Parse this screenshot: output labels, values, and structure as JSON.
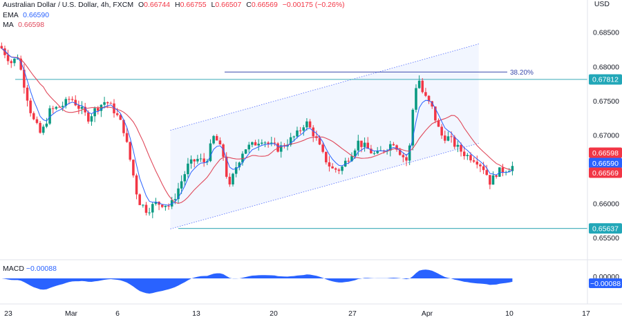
{
  "header": {
    "symbol_title": "Australian Dollar / U.S. Dollar, 4h, FXCM",
    "open_label": "O",
    "open": "0.66744",
    "high_label": "H",
    "high": "0.66755",
    "low_label": "L",
    "low": "0.66507",
    "close_label": "C",
    "close": "0.66569",
    "change": "−0.00175 (−0.26%)",
    "currency": "USD"
  },
  "indicators": {
    "ema_label": "EMA",
    "ema_value": "0.66590",
    "ma_label": "MA",
    "ma_value": "0.66598",
    "macd_label": "MACD",
    "macd_value": "−0.00088"
  },
  "colors": {
    "up": "#089981",
    "down": "#f23645",
    "ema": "#2962ff",
    "ma": "#e0485a",
    "hline": "#4fb3bf",
    "channel": "#3d5afe",
    "macd": "#2962ff",
    "fib": "#3949ab"
  },
  "chart_data": {
    "type": "candlestick",
    "price_axis": {
      "ticks": [
        "0.68500",
        "0.68000",
        "0.67500",
        "0.67000",
        "0.66500",
        "0.66000",
        "0.65500"
      ],
      "ylim": [
        0.6522,
        0.6885
      ]
    },
    "time_axis": {
      "labels": [
        "23",
        "Mar",
        "6",
        "13",
        "20",
        "27",
        "Apr",
        "10",
        "17"
      ]
    },
    "horizontal_lines": [
      {
        "price": 0.67812,
        "label": "0.67812"
      },
      {
        "price": 0.65637,
        "label": "0.65637"
      }
    ],
    "fib_level": {
      "price": 0.6792,
      "label": "38.20%"
    },
    "price_tags": [
      {
        "name": "ma",
        "price": 0.66598,
        "label": "0.66598"
      },
      {
        "name": "ema",
        "price": 0.6659,
        "label": "0.66590"
      },
      {
        "name": "close",
        "price": 0.66569,
        "label": "0.66569"
      }
    ],
    "channel": {
      "upper": [
        {
          "t": 0.29,
          "p": 0.6707
        },
        {
          "t": 0.815,
          "p": 0.6833
        }
      ],
      "lower": [
        {
          "t": 0.29,
          "p": 0.6563
        },
        {
          "t": 0.815,
          "p": 0.6688
        }
      ]
    },
    "waypoints": [
      [
        0.0,
        0.683
      ],
      [
        0.02,
        0.6805
      ],
      [
        0.03,
        0.6815
      ],
      [
        0.045,
        0.676
      ],
      [
        0.055,
        0.6725
      ],
      [
        0.07,
        0.67
      ],
      [
        0.085,
        0.6735
      ],
      [
        0.11,
        0.6745
      ],
      [
        0.12,
        0.6755
      ],
      [
        0.135,
        0.674
      ],
      [
        0.15,
        0.6725
      ],
      [
        0.165,
        0.674
      ],
      [
        0.18,
        0.675
      ],
      [
        0.195,
        0.6735
      ],
      [
        0.21,
        0.671
      ],
      [
        0.225,
        0.665
      ],
      [
        0.235,
        0.6605
      ],
      [
        0.25,
        0.659
      ],
      [
        0.265,
        0.66
      ],
      [
        0.28,
        0.66
      ],
      [
        0.29,
        0.6595
      ],
      [
        0.305,
        0.6625
      ],
      [
        0.32,
        0.6655
      ],
      [
        0.335,
        0.6665
      ],
      [
        0.35,
        0.666
      ],
      [
        0.365,
        0.67
      ],
      [
        0.38,
        0.667
      ],
      [
        0.39,
        0.662
      ],
      [
        0.4,
        0.665
      ],
      [
        0.415,
        0.668
      ],
      [
        0.43,
        0.6685
      ],
      [
        0.445,
        0.6695
      ],
      [
        0.46,
        0.6685
      ],
      [
        0.475,
        0.668
      ],
      [
        0.49,
        0.669
      ],
      [
        0.505,
        0.67
      ],
      [
        0.52,
        0.672
      ],
      [
        0.535,
        0.67
      ],
      [
        0.55,
        0.667
      ],
      [
        0.565,
        0.665
      ],
      [
        0.58,
        0.665
      ],
      [
        0.595,
        0.667
      ],
      [
        0.61,
        0.669
      ],
      [
        0.625,
        0.668
      ],
      [
        0.64,
        0.667
      ],
      [
        0.655,
        0.668
      ],
      [
        0.67,
        0.669
      ],
      [
        0.685,
        0.667
      ],
      [
        0.695,
        0.666
      ],
      [
        0.705,
        0.676
      ],
      [
        0.712,
        0.6785
      ],
      [
        0.72,
        0.676
      ],
      [
        0.735,
        0.674
      ],
      [
        0.75,
        0.67
      ],
      [
        0.765,
        0.6695
      ],
      [
        0.78,
        0.668
      ],
      [
        0.795,
        0.667
      ],
      [
        0.81,
        0.6665
      ],
      [
        0.825,
        0.665
      ],
      [
        0.835,
        0.663
      ],
      [
        0.845,
        0.6645
      ],
      [
        0.86,
        0.665
      ],
      [
        0.875,
        0.6655
      ]
    ],
    "ema_length_note": "",
    "macd_axis": {
      "ticks": [
        "0.00000",
        "−0.00088"
      ]
    }
  }
}
